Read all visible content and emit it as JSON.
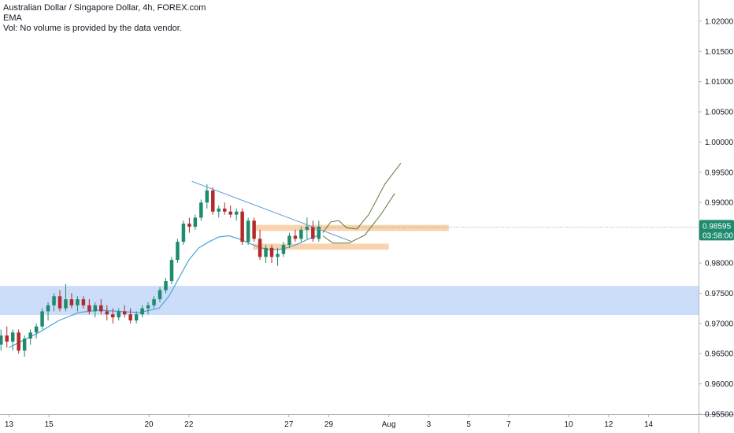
{
  "legend": {
    "title": "Australian Dollar / Singapore Dollar, 4h, FOREX.com",
    "indicator": "EMA",
    "volume_note": "Vol: No volume is provided by the data vendor."
  },
  "colors": {
    "up": "#26a69a",
    "down": "#ef5350",
    "up_body": "#1e8a6e",
    "down_body": "#b22a2a",
    "ema": "#4ba3d9",
    "trendline": "#5b9bd5",
    "projection": "#5d7a3a",
    "zone_orange": "#f9cba0",
    "zone_blue": "#b7cff7",
    "price_tag": "#1e8a6e",
    "axis": "#b2b5be"
  },
  "price_tag": {
    "value": "0.98595",
    "countdown": "03:58:00"
  },
  "chart_data": {
    "type": "candlestick",
    "symbol": "Australian Dollar / Singapore Dollar",
    "timeframe": "4h",
    "source": "FOREX.com",
    "y_axis": {
      "ticks": [
        "1.02000",
        "1.01500",
        "1.01000",
        "1.00500",
        "1.00000",
        "0.99500",
        "0.99000",
        "0.98500",
        "0.98000",
        "0.97500",
        "0.97000",
        "0.96500",
        "0.96000",
        "0.95500"
      ],
      "range": [
        0.955,
        1.0235
      ]
    },
    "x_axis": {
      "ticks": [
        {
          "label": "13",
          "day": 13
        },
        {
          "label": "15",
          "day": 15
        },
        {
          "label": "20",
          "day": 20
        },
        {
          "label": "22",
          "day": 22
        },
        {
          "label": "27",
          "day": 27
        },
        {
          "label": "29",
          "day": 29
        },
        {
          "label": "Aug",
          "day": 32
        },
        {
          "label": "3",
          "day": 34
        },
        {
          "label": "5",
          "day": 36
        },
        {
          "label": "7",
          "day": 38
        },
        {
          "label": "10",
          "day": 41
        },
        {
          "label": "12",
          "day": 43
        },
        {
          "label": "14",
          "day": 45
        }
      ],
      "range_day": [
        12.55,
        47.5
      ]
    },
    "candles": [
      [
        0.9665,
        0.969,
        0.9655,
        0.968
      ],
      [
        0.968,
        0.9695,
        0.966,
        0.967
      ],
      [
        0.967,
        0.969,
        0.9655,
        0.9685
      ],
      [
        0.9685,
        0.969,
        0.965,
        0.9655
      ],
      [
        0.9655,
        0.968,
        0.9645,
        0.9675
      ],
      [
        0.9675,
        0.969,
        0.9665,
        0.9685
      ],
      [
        0.9685,
        0.97,
        0.9675,
        0.9695
      ],
      [
        0.9695,
        0.9725,
        0.969,
        0.972
      ],
      [
        0.972,
        0.9735,
        0.9705,
        0.973
      ],
      [
        0.973,
        0.975,
        0.972,
        0.9745
      ],
      [
        0.9745,
        0.9755,
        0.972,
        0.9725
      ],
      [
        0.9725,
        0.9765,
        0.972,
        0.974
      ],
      [
        0.974,
        0.975,
        0.9725,
        0.973
      ],
      [
        0.973,
        0.9745,
        0.972,
        0.974
      ],
      [
        0.974,
        0.9745,
        0.9725,
        0.973
      ],
      [
        0.973,
        0.974,
        0.9715,
        0.972
      ],
      [
        0.972,
        0.9735,
        0.971,
        0.973
      ],
      [
        0.973,
        0.974,
        0.9715,
        0.972
      ],
      [
        0.972,
        0.973,
        0.9705,
        0.9715
      ],
      [
        0.9715,
        0.9725,
        0.97,
        0.971
      ],
      [
        0.971,
        0.9725,
        0.9705,
        0.972
      ],
      [
        0.972,
        0.973,
        0.971,
        0.9715
      ],
      [
        0.9715,
        0.9725,
        0.97,
        0.9705
      ],
      [
        0.9705,
        0.972,
        0.97,
        0.9715
      ],
      [
        0.9715,
        0.973,
        0.971,
        0.9725
      ],
      [
        0.9725,
        0.9735,
        0.9715,
        0.973
      ],
      [
        0.973,
        0.9745,
        0.9725,
        0.974
      ],
      [
        0.974,
        0.976,
        0.9735,
        0.9755
      ],
      [
        0.9755,
        0.9775,
        0.975,
        0.977
      ],
      [
        0.977,
        0.981,
        0.9765,
        0.9805
      ],
      [
        0.9805,
        0.984,
        0.98,
        0.9835
      ],
      [
        0.9835,
        0.987,
        0.983,
        0.9865
      ],
      [
        0.9865,
        0.9875,
        0.985,
        0.986
      ],
      [
        0.986,
        0.988,
        0.9855,
        0.9875
      ],
      [
        0.9875,
        0.9905,
        0.987,
        0.99
      ],
      [
        0.99,
        0.993,
        0.989,
        0.992
      ],
      [
        0.992,
        0.9925,
        0.988,
        0.9885
      ],
      [
        0.9885,
        0.9895,
        0.9875,
        0.989
      ],
      [
        0.989,
        0.99,
        0.988,
        0.9885
      ],
      [
        0.9885,
        0.9895,
        0.9875,
        0.988
      ],
      [
        0.988,
        0.989,
        0.987,
        0.9885
      ],
      [
        0.9885,
        0.989,
        0.983,
        0.9835
      ],
      [
        0.9835,
        0.9875,
        0.983,
        0.987
      ],
      [
        0.987,
        0.9875,
        0.9835,
        0.984
      ],
      [
        0.984,
        0.9855,
        0.9805,
        0.981
      ],
      [
        0.981,
        0.983,
        0.98,
        0.9825
      ],
      [
        0.9825,
        0.983,
        0.98,
        0.981
      ],
      [
        0.981,
        0.9825,
        0.9795,
        0.9815
      ],
      [
        0.9815,
        0.9835,
        0.981,
        0.983
      ],
      [
        0.983,
        0.985,
        0.9825,
        0.9845
      ],
      [
        0.9845,
        0.9855,
        0.9835,
        0.984
      ],
      [
        0.984,
        0.986,
        0.9835,
        0.9855
      ],
      [
        0.9855,
        0.9875,
        0.984,
        0.986
      ],
      [
        0.986,
        0.987,
        0.9835,
        0.984
      ],
      [
        0.984,
        0.987,
        0.9835,
        0.986
      ]
    ],
    "ema": [
      [
        13,
        0.966
      ],
      [
        14.5,
        0.9685
      ],
      [
        15.5,
        0.9705
      ],
      [
        16.5,
        0.9718
      ],
      [
        17.5,
        0.9722
      ],
      [
        18.5,
        0.972
      ],
      [
        19.5,
        0.9718
      ],
      [
        20.5,
        0.9725
      ],
      [
        21,
        0.9745
      ],
      [
        21.5,
        0.9775
      ],
      [
        22,
        0.9805
      ],
      [
        22.5,
        0.9825
      ],
      [
        23,
        0.9835
      ],
      [
        23.5,
        0.9843
      ],
      [
        24,
        0.9845
      ],
      [
        24.5,
        0.984
      ],
      [
        25,
        0.9833
      ],
      [
        25.5,
        0.9826
      ],
      [
        26,
        0.9822
      ],
      [
        26.5,
        0.9822
      ],
      [
        27,
        0.9826
      ],
      [
        27.5,
        0.9832
      ],
      [
        28,
        0.984
      ],
      [
        28.5,
        0.9846
      ]
    ],
    "trendline": [
      [
        22.15,
        0.9935
      ],
      [
        30.1,
        0.9836
      ]
    ],
    "zones": [
      {
        "color": "blue",
        "day_from": 12.55,
        "day_to": 47.5,
        "price_from": 0.9714,
        "price_to": 0.9762
      },
      {
        "color": "orange",
        "day_from": 25.2,
        "day_to": 35.0,
        "price_from": 0.9853,
        "price_to": 0.9863
      },
      {
        "color": "orange",
        "day_from": 25.2,
        "day_to": 32.0,
        "price_from": 0.9822,
        "price_to": 0.9832
      }
    ],
    "projections": [
      [
        [
          28.7,
          0.985
        ],
        [
          29.1,
          0.9868
        ],
        [
          29.5,
          0.987
        ],
        [
          29.9,
          0.9858
        ],
        [
          30.4,
          0.9856
        ],
        [
          31,
          0.988
        ],
        [
          31.8,
          0.993
        ],
        [
          32.6,
          0.9965
        ]
      ],
      [
        [
          28.7,
          0.9845
        ],
        [
          29.2,
          0.9833
        ],
        [
          30,
          0.9833
        ],
        [
          30.8,
          0.9846
        ],
        [
          31.6,
          0.988
        ],
        [
          32.3,
          0.9915
        ]
      ]
    ],
    "last_price": 0.98595
  }
}
